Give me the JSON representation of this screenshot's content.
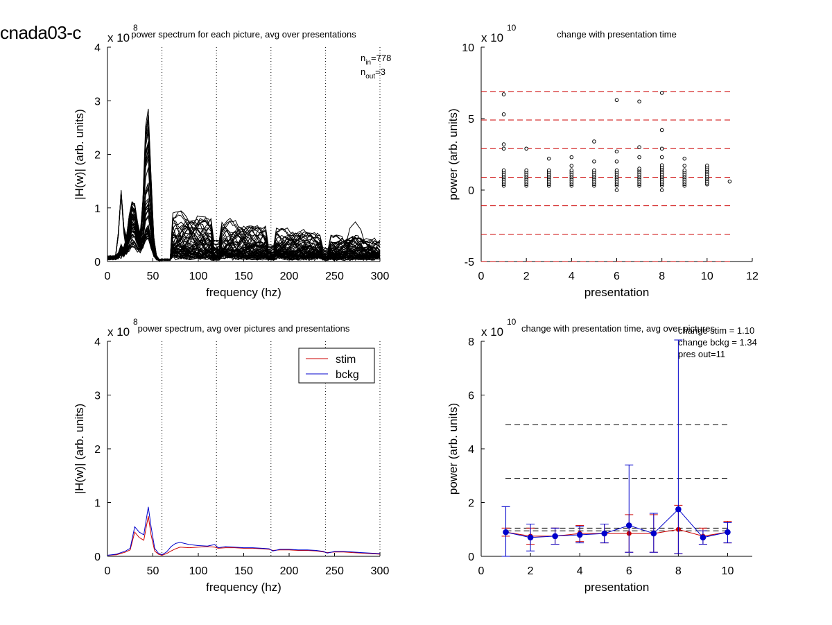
{
  "figure_title": "cnada03-c",
  "chart_data": [
    {
      "id": "p1",
      "type": "line",
      "title": "power spectrum for each picture, avg over presentations",
      "xlabel": "frequency (hz)",
      "ylabel": "|H(w)| (arb. units)",
      "exponent": "x 10",
      "exponent_power": "8",
      "xlim": [
        0,
        300
      ],
      "ylim": [
        0,
        4
      ],
      "xticks": [
        "0",
        "50",
        "100",
        "150",
        "200",
        "250",
        "300"
      ],
      "yticks": [
        "0",
        "1",
        "2",
        "3",
        "4"
      ],
      "vlines": [
        60,
        120,
        180,
        240,
        300
      ],
      "annotation": {
        "n_in_label": "n",
        "n_in_sub": "in",
        "n_in_value": "=778",
        "n_out_label": "n",
        "n_out_sub": "out",
        "n_out_value": "=3"
      },
      "series_color": "#000000",
      "curve_count": 60
    },
    {
      "id": "p2",
      "type": "scatter",
      "title": "change with presentation time",
      "xlabel": "presentation",
      "ylabel": "power (arb. units)",
      "exponent": "x 10",
      "exponent_power": "10",
      "xlim": [
        0,
        12
      ],
      "ylim": [
        -5,
        10
      ],
      "xticks": [
        "0",
        "2",
        "4",
        "6",
        "8",
        "10",
        "12"
      ],
      "yticks": [
        "-5",
        "0",
        "5",
        "10"
      ],
      "hlines": [
        6.9,
        4.9,
        2.9,
        0.9,
        -1.1,
        -3.1,
        -5.0
      ],
      "hline_color": "#cc0000",
      "points": [
        {
          "x": 1,
          "y": 6.7
        },
        {
          "x": 1,
          "y": 5.3
        },
        {
          "x": 1,
          "y": 3.2
        },
        {
          "x": 1,
          "y": 2.9
        },
        {
          "x": 2,
          "y": 2.9
        },
        {
          "x": 3,
          "y": 2.2
        },
        {
          "x": 4,
          "y": 2.3
        },
        {
          "x": 4,
          "y": 1.7
        },
        {
          "x": 5,
          "y": 3.4
        },
        {
          "x": 5,
          "y": 2.0
        },
        {
          "x": 6,
          "y": 6.3
        },
        {
          "x": 6,
          "y": 2.7
        },
        {
          "x": 6,
          "y": 2.0
        },
        {
          "x": 6,
          "y": 0.0
        },
        {
          "x": 7,
          "y": 6.2
        },
        {
          "x": 7,
          "y": 3.0
        },
        {
          "x": 7,
          "y": 2.3
        },
        {
          "x": 8,
          "y": 6.8
        },
        {
          "x": 8,
          "y": 4.2
        },
        {
          "x": 8,
          "y": 2.9
        },
        {
          "x": 8,
          "y": 2.3
        },
        {
          "x": 8,
          "y": 0.0
        },
        {
          "x": 9,
          "y": 2.2
        },
        {
          "x": 9,
          "y": 1.7
        },
        {
          "x": 11,
          "y": 0.6
        }
      ],
      "clusters": [
        {
          "x": 1,
          "lo": 0.3,
          "hi": 1.5
        },
        {
          "x": 2,
          "lo": 0.3,
          "hi": 1.5
        },
        {
          "x": 3,
          "lo": 0.3,
          "hi": 1.5
        },
        {
          "x": 4,
          "lo": 0.3,
          "hi": 1.5
        },
        {
          "x": 5,
          "lo": 0.3,
          "hi": 1.5
        },
        {
          "x": 6,
          "lo": 0.3,
          "hi": 1.5
        },
        {
          "x": 7,
          "lo": 0.3,
          "hi": 1.6
        },
        {
          "x": 8,
          "lo": 0.3,
          "hi": 1.8
        },
        {
          "x": 9,
          "lo": 0.3,
          "hi": 1.5
        },
        {
          "x": 10,
          "lo": 0.4,
          "hi": 1.8
        }
      ]
    },
    {
      "id": "p3",
      "type": "line",
      "title": "power spectrum, avg over pictures and presentations",
      "xlabel": "frequency (hz)",
      "ylabel": "|H(w)| (arb. units)",
      "exponent": "x 10",
      "exponent_power": "8",
      "xlim": [
        0,
        300
      ],
      "ylim": [
        0,
        4
      ],
      "xticks": [
        "0",
        "50",
        "100",
        "150",
        "200",
        "250",
        "300"
      ],
      "yticks": [
        "0",
        "1",
        "2",
        "3",
        "4"
      ],
      "vlines": [
        60,
        120,
        180,
        240,
        300
      ],
      "legend": {
        "position": "top-right",
        "entries": [
          "stim",
          "bckg"
        ]
      },
      "series": [
        {
          "name": "stim",
          "color": "#cc0000",
          "x": [
            0,
            10,
            20,
            25,
            30,
            35,
            40,
            45,
            48,
            52,
            56,
            60,
            65,
            70,
            75,
            80,
            90,
            100,
            110,
            118,
            122,
            130,
            140,
            150,
            160,
            170,
            178,
            182,
            190,
            200,
            210,
            220,
            230,
            238,
            242,
            250,
            260,
            270,
            280,
            290,
            300
          ],
          "y": [
            0.02,
            0.03,
            0.08,
            0.12,
            0.45,
            0.35,
            0.3,
            0.75,
            0.4,
            0.1,
            0.04,
            0.02,
            0.05,
            0.1,
            0.14,
            0.17,
            0.16,
            0.17,
            0.18,
            0.17,
            0.15,
            0.16,
            0.16,
            0.15,
            0.15,
            0.14,
            0.13,
            0.11,
            0.12,
            0.12,
            0.11,
            0.11,
            0.1,
            0.08,
            0.07,
            0.08,
            0.08,
            0.07,
            0.06,
            0.05,
            0.04
          ]
        },
        {
          "name": "bckg",
          "color": "#0000cc",
          "x": [
            0,
            10,
            20,
            25,
            30,
            35,
            40,
            45,
            48,
            52,
            56,
            60,
            65,
            70,
            75,
            80,
            90,
            100,
            110,
            118,
            122,
            130,
            140,
            150,
            160,
            170,
            178,
            182,
            190,
            200,
            210,
            220,
            230,
            238,
            242,
            250,
            260,
            270,
            280,
            290,
            300
          ],
          "y": [
            0.02,
            0.04,
            0.1,
            0.15,
            0.55,
            0.45,
            0.4,
            0.92,
            0.55,
            0.15,
            0.06,
            0.03,
            0.08,
            0.18,
            0.24,
            0.26,
            0.22,
            0.2,
            0.19,
            0.22,
            0.16,
            0.18,
            0.17,
            0.16,
            0.16,
            0.15,
            0.14,
            0.1,
            0.13,
            0.13,
            0.12,
            0.12,
            0.11,
            0.09,
            0.06,
            0.09,
            0.09,
            0.08,
            0.07,
            0.06,
            0.05
          ]
        }
      ]
    },
    {
      "id": "p4",
      "type": "line",
      "title": "change with presentation time, avg over pictures",
      "xlabel": "presentation",
      "ylabel": "power (arb. units)",
      "exponent": "x 10",
      "exponent_power": "10",
      "xlim": [
        0,
        11
      ],
      "ylim": [
        0,
        8
      ],
      "xticks": [
        "0",
        "2",
        "4",
        "6",
        "8",
        "10"
      ],
      "yticks": [
        "0",
        "2",
        "4",
        "6",
        "8"
      ],
      "hlines": [
        4.9,
        2.9,
        0.95,
        1.05
      ],
      "hline_color": "#000000",
      "annotations": [
        "change stim = 1.10",
        "change bckg = 1.34",
        "pres out=11"
      ],
      "series": [
        {
          "name": "stim",
          "color": "#cc0000",
          "x": [
            1,
            2,
            3,
            4,
            5,
            6,
            7,
            8,
            9,
            10
          ],
          "y": [
            0.9,
            0.75,
            0.75,
            0.85,
            0.85,
            0.85,
            0.85,
            1.0,
            0.75,
            0.9
          ],
          "err_lo": [
            0.15,
            0.3,
            0.3,
            0.3,
            0.35,
            0.7,
            0.7,
            0.9,
            0.3,
            0.4
          ],
          "err_hi": [
            0.15,
            0.3,
            0.3,
            0.3,
            0.35,
            0.7,
            0.7,
            0.9,
            0.3,
            0.4
          ]
        },
        {
          "name": "bckg",
          "color": "#0000cc",
          "x": [
            1,
            2,
            3,
            4,
            5,
            6,
            7,
            8,
            9,
            10
          ],
          "y": [
            0.9,
            0.7,
            0.75,
            0.8,
            0.85,
            1.15,
            0.85,
            1.75,
            0.7,
            0.9
          ],
          "err_lo": [
            0.9,
            0.5,
            0.3,
            0.3,
            0.35,
            1.0,
            0.7,
            1.65,
            0.25,
            0.4
          ],
          "err_hi": [
            0.95,
            0.5,
            0.3,
            0.3,
            0.35,
            2.25,
            0.75,
            6.3,
            0.25,
            0.35
          ]
        }
      ]
    }
  ]
}
